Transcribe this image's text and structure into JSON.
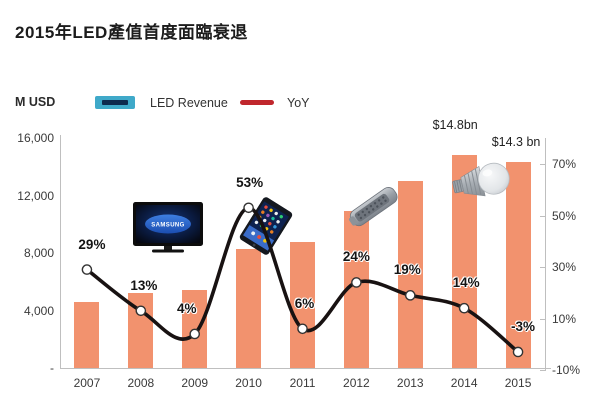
{
  "title": "2015年LED產值首度面臨衰退",
  "legend": {
    "unit_label": "M USD",
    "led_revenue_label": "LED Revenue",
    "yoy_label": "YoY"
  },
  "icons": {
    "tv_brand": "SAMSUNG",
    "names": [
      "samsung-tv",
      "ipad-tablet",
      "led-street-light",
      "led-bulb"
    ]
  },
  "colors": {
    "bar": "#F2926E",
    "line": "#181212",
    "marker_fill": "#ffffff",
    "marker_stroke": "#333333",
    "legend_bar_fill": "#3FA9C9",
    "legend_bar_inner": "#0E2A4E",
    "legend_line": "#C0272D",
    "axis": "#BFBFBF",
    "text": "#3a3a3a"
  },
  "chart_data": {
    "type": "combo-bar-line",
    "title": "2015年LED產值首度面臨衰退",
    "categories": [
      "2007",
      "2008",
      "2009",
      "2010",
      "2011",
      "2012",
      "2013",
      "2014",
      "2015"
    ],
    "series": [
      {
        "name": "LED Revenue",
        "type": "bar",
        "axis": "left",
        "unit": "M USD",
        "values": [
          4600,
          5200,
          5400,
          8300,
          8800,
          10900,
          13000,
          14800,
          14300
        ]
      },
      {
        "name": "YoY",
        "type": "line",
        "axis": "right",
        "unit": "%",
        "values": [
          29,
          13,
          4,
          53,
          6,
          24,
          19,
          14,
          -3
        ],
        "point_labels": [
          "29%",
          "13%",
          "4%",
          "53%",
          "6%",
          "24%",
          "19%",
          "14%",
          "-3%"
        ]
      }
    ],
    "annotations": [
      {
        "category": "2014",
        "text": "$14.8bn"
      },
      {
        "category": "2015",
        "text": "$14.3 bn"
      }
    ],
    "left_axis": {
      "title": "M USD",
      "tick_labels": [
        "16,000",
        "12,000",
        "8,000",
        "4,000",
        "-"
      ],
      "tick_values": [
        16000,
        12000,
        8000,
        4000,
        0
      ],
      "range": [
        0,
        16000
      ]
    },
    "right_axis": {
      "tick_labels": [
        "70%",
        "50%",
        "30%",
        "10%",
        "-10%"
      ],
      "tick_values": [
        70,
        50,
        30,
        10,
        -10
      ],
      "range": [
        -10,
        70
      ]
    },
    "grid": false,
    "legend_position": "top"
  }
}
